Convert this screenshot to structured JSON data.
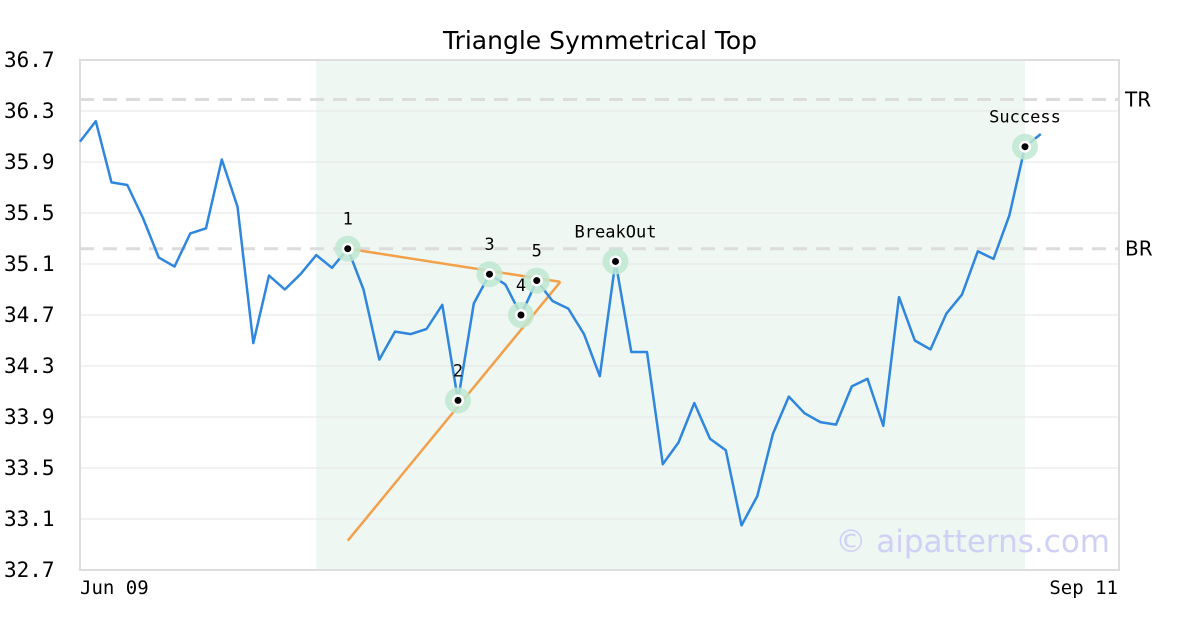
{
  "chart_data": {
    "type": "line",
    "title": "Triangle Symmetrical Top",
    "xlabel": "",
    "ylabel": "",
    "ylim": [
      32.7,
      36.7
    ],
    "yticks": [
      "32.7",
      "33.1",
      "33.5",
      "33.9",
      "34.3",
      "34.7",
      "35.1",
      "35.5",
      "35.9",
      "36.3",
      "36.7"
    ],
    "x_tick_labels": [
      {
        "label": "Jun 09",
        "index": 0
      },
      {
        "label": "Sep 11",
        "index": 66
      }
    ],
    "series": [
      {
        "color": "#2f86de",
        "values": [
          36.06,
          36.22,
          35.74,
          35.72,
          35.46,
          35.15,
          35.08,
          35.34,
          35.38,
          35.92,
          35.55,
          34.48,
          35.01,
          34.9,
          35.02,
          35.17,
          35.07,
          35.22,
          34.9,
          34.35,
          34.57,
          34.55,
          34.59,
          34.78,
          34.03,
          34.79,
          35.02,
          34.94,
          34.7,
          34.97,
          34.81,
          34.75,
          34.55,
          34.22,
          35.12,
          34.41,
          34.41,
          33.53,
          33.7,
          34.01,
          33.73,
          33.64,
          33.05,
          33.28,
          33.77,
          34.06,
          33.93,
          33.86,
          33.84,
          34.14,
          34.2,
          33.83,
          34.84,
          34.5,
          34.43,
          34.71,
          34.86,
          35.2,
          35.14,
          35.48,
          36.02,
          36.12
        ]
      }
    ],
    "pattern_lines": {
      "color": "#f2a04a",
      "upper": [
        [
          17,
          35.22
        ],
        [
          30.5,
          34.96
        ]
      ],
      "lower": [
        [
          17,
          32.93
        ],
        [
          30.5,
          34.96
        ]
      ]
    },
    "key_points": [
      {
        "label": "1",
        "index": 17,
        "y": 35.22
      },
      {
        "label": "2",
        "index": 24,
        "y": 34.03
      },
      {
        "label": "3",
        "index": 26,
        "y": 35.02
      },
      {
        "label": "4",
        "index": 28,
        "y": 34.7
      },
      {
        "label": "5",
        "index": 29,
        "y": 34.97
      },
      {
        "label": "BreakOut",
        "index": 34,
        "y": 35.12
      },
      {
        "label": "Success",
        "index": 60,
        "y": 36.02
      }
    ],
    "reference_lines": [
      {
        "label": "TR",
        "y": 36.39
      },
      {
        "label": "BR",
        "y": 35.22
      }
    ],
    "highlight_region": {
      "from_index": 15,
      "to_index": 60,
      "color": "#eef7f2"
    },
    "grid": true
  },
  "watermark": "© aipatterns.com"
}
